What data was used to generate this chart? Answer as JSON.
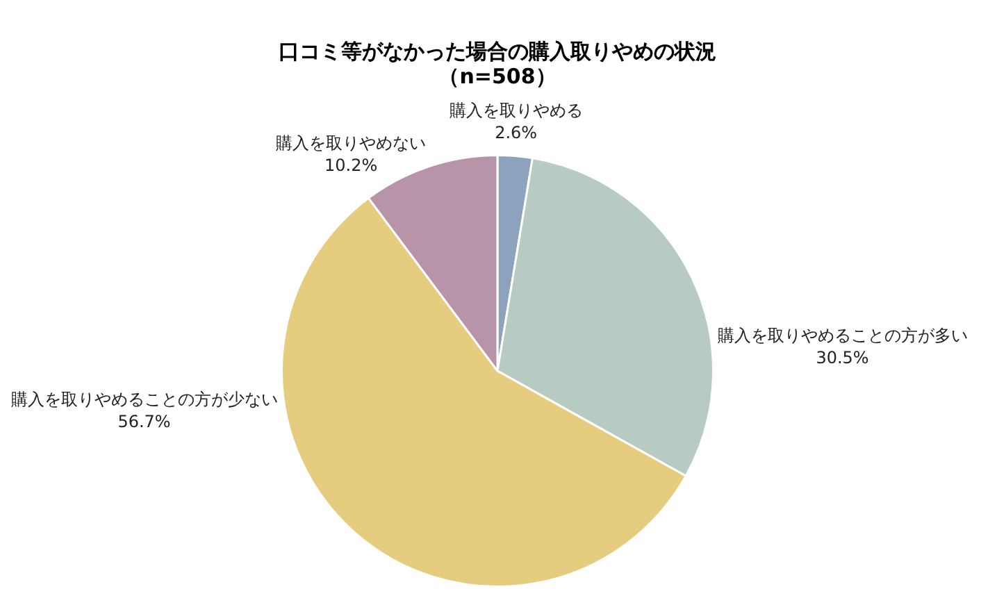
{
  "chart_data": {
    "type": "pie",
    "title": "口コミ等がなかった場合の購入取りやめの状況",
    "subtitle": "（n=508）",
    "categories": [
      "購入を取りやめる",
      "購入を取りやめることの方が多い",
      "購入を取りやめることの方が少ない",
      "購入を取りやめない"
    ],
    "values": [
      2.6,
      30.5,
      56.7,
      10.2
    ],
    "colors": [
      "#8da2bd",
      "#b8cbc3",
      "#e6cc7e",
      "#b894a8"
    ],
    "value_labels": [
      "2.6%",
      "30.5%",
      "56.7%",
      "10.2%"
    ]
  }
}
